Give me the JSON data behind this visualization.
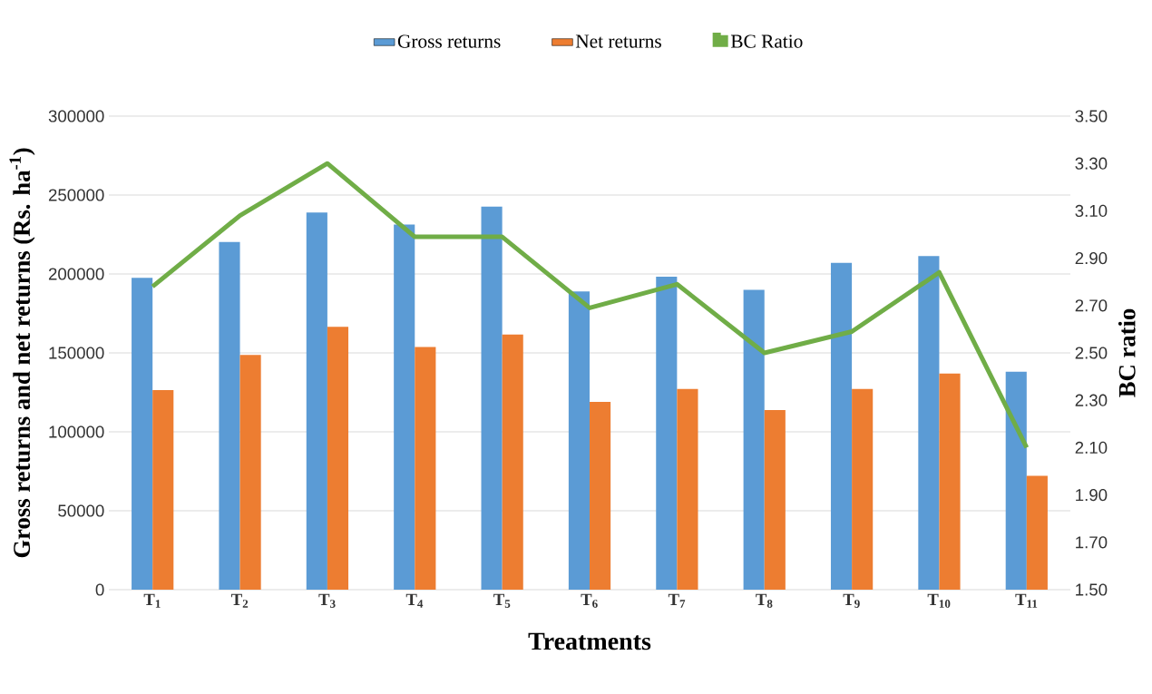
{
  "chart_data": {
    "type": "bar",
    "xlabel": "Treatments",
    "ylabel": "Gross returns and net returns (Rs. ha$^{-1}$)",
    "y2label": "BC ratio",
    "categories": [
      "T$_{1}$",
      "T$_{2}$",
      "T$_{3}$",
      "T$_{4}$",
      "T$_{5}$",
      "T$_{6}$",
      "T$_{7}$",
      "T$_{8}$",
      "T$_{9}$",
      "T$_{10}$",
      "T$_{11}$"
    ],
    "series": [
      {
        "name": "Gross returns",
        "color": "#5b9bd5",
        "values": [
          197500,
          220300,
          238900,
          231300,
          242800,
          189000,
          198300,
          190000,
          207100,
          211400,
          138100
        ]
      },
      {
        "name": "Net returns",
        "color": "#ed7d31",
        "values": [
          126500,
          148700,
          166500,
          153800,
          161600,
          119000,
          127100,
          113800,
          127100,
          136900,
          72100
        ]
      },
      {
        "name": "BC Ratio",
        "color": "#70ad47",
        "type": "line",
        "axis": "y2",
        "values": [
          2.78,
          3.08,
          3.3,
          2.99,
          2.99,
          2.69,
          2.79,
          2.5,
          2.59,
          2.84,
          2.1
        ]
      }
    ],
    "ylim": [
      0,
      300000
    ],
    "yticks": [
      0,
      50000,
      100000,
      150000,
      200000,
      250000,
      300000
    ],
    "y2lim": [
      1.5,
      3.5
    ],
    "y2ticks": [
      {
        "value": 1.5,
        "label": "1.50"
      },
      {
        "value": 1.7,
        "label": "1.70"
      },
      {
        "value": 1.9,
        "label": "1.90"
      },
      {
        "value": 2.1,
        "label": "2.10"
      },
      {
        "value": 2.3,
        "label": "2.30"
      },
      {
        "value": 2.5,
        "label": "2.50"
      },
      {
        "value": 2.7,
        "label": "2.70"
      },
      {
        "value": 2.9,
        "label": "2.90"
      },
      {
        "value": 3.1,
        "label": "3.10"
      },
      {
        "value": 3.3,
        "label": "3.30"
      },
      {
        "value": 3.5,
        "label": "3.50"
      }
    ],
    "grid": "y",
    "legend": "top"
  }
}
